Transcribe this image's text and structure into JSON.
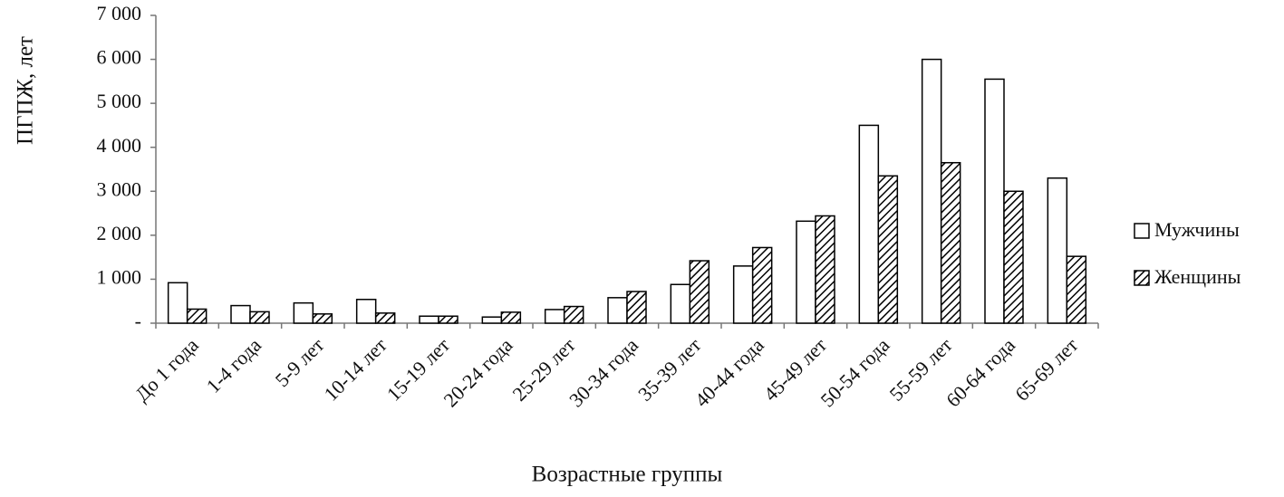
{
  "chart_data": {
    "type": "bar",
    "y_axis_label": "ПГПЖ, лет",
    "x_axis_label": "Возрастные группы",
    "categories": [
      "До 1 года",
      "1-4 года",
      "5-9 лет",
      "10-14 лет",
      "15-19 лет",
      "20-24 года",
      "25-29 лет",
      "30-34 года",
      "35-39 лет",
      "40-44 года",
      "45-49 лет",
      "50-54 года",
      "55-59 лет",
      "60-64 года",
      "65-69 лет"
    ],
    "series": [
      {
        "name": "Мужчины",
        "color": "#ffffff",
        "hatch": false,
        "values": [
          920,
          400,
          460,
          540,
          160,
          140,
          310,
          580,
          880,
          1300,
          2320,
          4500,
          6000,
          5550,
          3300
        ]
      },
      {
        "name": "Женщины",
        "color": "#ffffff",
        "hatch": true,
        "values": [
          320,
          260,
          210,
          230,
          160,
          250,
          380,
          720,
          1420,
          1720,
          2440,
          3350,
          3650,
          3000,
          1520
        ]
      }
    ],
    "ylim": [
      0,
      7000
    ],
    "yticks": [
      {
        "value": 0,
        "label": "-"
      },
      {
        "value": 1000,
        "label": "1 000"
      },
      {
        "value": 2000,
        "label": "2 000"
      },
      {
        "value": 3000,
        "label": "3 000"
      },
      {
        "value": 4000,
        "label": "4 000"
      },
      {
        "value": 5000,
        "label": "5 000"
      },
      {
        "value": 6000,
        "label": "6 000"
      },
      {
        "value": 7000,
        "label": "7 000"
      }
    ],
    "legend": "right"
  }
}
